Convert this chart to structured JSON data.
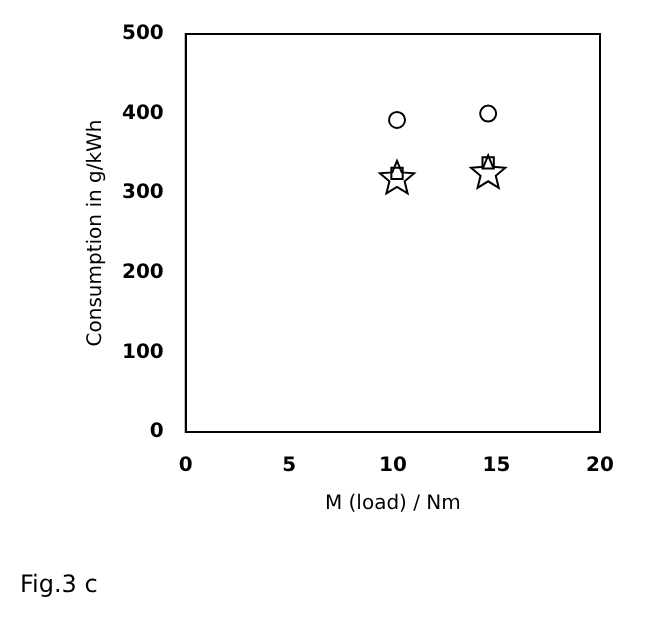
{
  "chart_data": {
    "type": "scatter",
    "xlabel": "M (load) / Nm",
    "ylabel": "Consumption in g/kWh",
    "annotations": [
      "Fig.3 c"
    ],
    "x": [
      10.2,
      14.6
    ],
    "xlim": [
      0,
      20
    ],
    "xticks": [
      0,
      5,
      10,
      15,
      20
    ],
    "ylim": [
      0,
      500
    ],
    "yticks": [
      0,
      100,
      200,
      300,
      400,
      500
    ],
    "grid": false,
    "legend": false,
    "series": [
      {
        "color": "#000000",
        "marker": "circle",
        "values": [
          392,
          400
        ]
      },
      {
        "color": "#000000",
        "marker": "square",
        "values": [
          325,
          338
        ]
      },
      {
        "color": "#000000",
        "marker": "star",
        "values": [
          318,
          325
        ]
      }
    ]
  }
}
